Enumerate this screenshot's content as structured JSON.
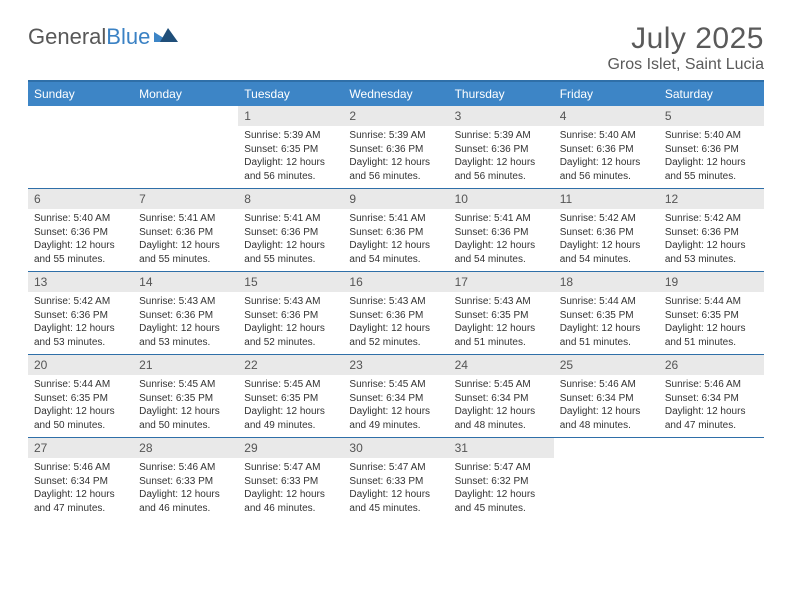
{
  "brand": {
    "part1": "General",
    "part2": "Blue"
  },
  "title": "July 2025",
  "location": "Gros Islet, Saint Lucia",
  "colors": {
    "header_bg": "#3d85c6",
    "border": "#2f6fa8",
    "daynum_bg": "#e9e9e9",
    "text_muted": "#5a5a5a"
  },
  "dow": [
    "Sunday",
    "Monday",
    "Tuesday",
    "Wednesday",
    "Thursday",
    "Friday",
    "Saturday"
  ],
  "weeks": [
    [
      {
        "n": "",
        "sr": "",
        "ss": "",
        "dl1": "",
        "dl2": "",
        "empty": true
      },
      {
        "n": "",
        "sr": "",
        "ss": "",
        "dl1": "",
        "dl2": "",
        "empty": true
      },
      {
        "n": "1",
        "sr": "Sunrise: 5:39 AM",
        "ss": "Sunset: 6:35 PM",
        "dl1": "Daylight: 12 hours",
        "dl2": "and 56 minutes."
      },
      {
        "n": "2",
        "sr": "Sunrise: 5:39 AM",
        "ss": "Sunset: 6:36 PM",
        "dl1": "Daylight: 12 hours",
        "dl2": "and 56 minutes."
      },
      {
        "n": "3",
        "sr": "Sunrise: 5:39 AM",
        "ss": "Sunset: 6:36 PM",
        "dl1": "Daylight: 12 hours",
        "dl2": "and 56 minutes."
      },
      {
        "n": "4",
        "sr": "Sunrise: 5:40 AM",
        "ss": "Sunset: 6:36 PM",
        "dl1": "Daylight: 12 hours",
        "dl2": "and 56 minutes."
      },
      {
        "n": "5",
        "sr": "Sunrise: 5:40 AM",
        "ss": "Sunset: 6:36 PM",
        "dl1": "Daylight: 12 hours",
        "dl2": "and 55 minutes."
      }
    ],
    [
      {
        "n": "6",
        "sr": "Sunrise: 5:40 AM",
        "ss": "Sunset: 6:36 PM",
        "dl1": "Daylight: 12 hours",
        "dl2": "and 55 minutes."
      },
      {
        "n": "7",
        "sr": "Sunrise: 5:41 AM",
        "ss": "Sunset: 6:36 PM",
        "dl1": "Daylight: 12 hours",
        "dl2": "and 55 minutes."
      },
      {
        "n": "8",
        "sr": "Sunrise: 5:41 AM",
        "ss": "Sunset: 6:36 PM",
        "dl1": "Daylight: 12 hours",
        "dl2": "and 55 minutes."
      },
      {
        "n": "9",
        "sr": "Sunrise: 5:41 AM",
        "ss": "Sunset: 6:36 PM",
        "dl1": "Daylight: 12 hours",
        "dl2": "and 54 minutes."
      },
      {
        "n": "10",
        "sr": "Sunrise: 5:41 AM",
        "ss": "Sunset: 6:36 PM",
        "dl1": "Daylight: 12 hours",
        "dl2": "and 54 minutes."
      },
      {
        "n": "11",
        "sr": "Sunrise: 5:42 AM",
        "ss": "Sunset: 6:36 PM",
        "dl1": "Daylight: 12 hours",
        "dl2": "and 54 minutes."
      },
      {
        "n": "12",
        "sr": "Sunrise: 5:42 AM",
        "ss": "Sunset: 6:36 PM",
        "dl1": "Daylight: 12 hours",
        "dl2": "and 53 minutes."
      }
    ],
    [
      {
        "n": "13",
        "sr": "Sunrise: 5:42 AM",
        "ss": "Sunset: 6:36 PM",
        "dl1": "Daylight: 12 hours",
        "dl2": "and 53 minutes."
      },
      {
        "n": "14",
        "sr": "Sunrise: 5:43 AM",
        "ss": "Sunset: 6:36 PM",
        "dl1": "Daylight: 12 hours",
        "dl2": "and 53 minutes."
      },
      {
        "n": "15",
        "sr": "Sunrise: 5:43 AM",
        "ss": "Sunset: 6:36 PM",
        "dl1": "Daylight: 12 hours",
        "dl2": "and 52 minutes."
      },
      {
        "n": "16",
        "sr": "Sunrise: 5:43 AM",
        "ss": "Sunset: 6:36 PM",
        "dl1": "Daylight: 12 hours",
        "dl2": "and 52 minutes."
      },
      {
        "n": "17",
        "sr": "Sunrise: 5:43 AM",
        "ss": "Sunset: 6:35 PM",
        "dl1": "Daylight: 12 hours",
        "dl2": "and 51 minutes."
      },
      {
        "n": "18",
        "sr": "Sunrise: 5:44 AM",
        "ss": "Sunset: 6:35 PM",
        "dl1": "Daylight: 12 hours",
        "dl2": "and 51 minutes."
      },
      {
        "n": "19",
        "sr": "Sunrise: 5:44 AM",
        "ss": "Sunset: 6:35 PM",
        "dl1": "Daylight: 12 hours",
        "dl2": "and 51 minutes."
      }
    ],
    [
      {
        "n": "20",
        "sr": "Sunrise: 5:44 AM",
        "ss": "Sunset: 6:35 PM",
        "dl1": "Daylight: 12 hours",
        "dl2": "and 50 minutes."
      },
      {
        "n": "21",
        "sr": "Sunrise: 5:45 AM",
        "ss": "Sunset: 6:35 PM",
        "dl1": "Daylight: 12 hours",
        "dl2": "and 50 minutes."
      },
      {
        "n": "22",
        "sr": "Sunrise: 5:45 AM",
        "ss": "Sunset: 6:35 PM",
        "dl1": "Daylight: 12 hours",
        "dl2": "and 49 minutes."
      },
      {
        "n": "23",
        "sr": "Sunrise: 5:45 AM",
        "ss": "Sunset: 6:34 PM",
        "dl1": "Daylight: 12 hours",
        "dl2": "and 49 minutes."
      },
      {
        "n": "24",
        "sr": "Sunrise: 5:45 AM",
        "ss": "Sunset: 6:34 PM",
        "dl1": "Daylight: 12 hours",
        "dl2": "and 48 minutes."
      },
      {
        "n": "25",
        "sr": "Sunrise: 5:46 AM",
        "ss": "Sunset: 6:34 PM",
        "dl1": "Daylight: 12 hours",
        "dl2": "and 48 minutes."
      },
      {
        "n": "26",
        "sr": "Sunrise: 5:46 AM",
        "ss": "Sunset: 6:34 PM",
        "dl1": "Daylight: 12 hours",
        "dl2": "and 47 minutes."
      }
    ],
    [
      {
        "n": "27",
        "sr": "Sunrise: 5:46 AM",
        "ss": "Sunset: 6:34 PM",
        "dl1": "Daylight: 12 hours",
        "dl2": "and 47 minutes."
      },
      {
        "n": "28",
        "sr": "Sunrise: 5:46 AM",
        "ss": "Sunset: 6:33 PM",
        "dl1": "Daylight: 12 hours",
        "dl2": "and 46 minutes."
      },
      {
        "n": "29",
        "sr": "Sunrise: 5:47 AM",
        "ss": "Sunset: 6:33 PM",
        "dl1": "Daylight: 12 hours",
        "dl2": "and 46 minutes."
      },
      {
        "n": "30",
        "sr": "Sunrise: 5:47 AM",
        "ss": "Sunset: 6:33 PM",
        "dl1": "Daylight: 12 hours",
        "dl2": "and 45 minutes."
      },
      {
        "n": "31",
        "sr": "Sunrise: 5:47 AM",
        "ss": "Sunset: 6:32 PM",
        "dl1": "Daylight: 12 hours",
        "dl2": "and 45 minutes."
      },
      {
        "n": "",
        "sr": "",
        "ss": "",
        "dl1": "",
        "dl2": "",
        "empty": true
      },
      {
        "n": "",
        "sr": "",
        "ss": "",
        "dl1": "",
        "dl2": "",
        "empty": true
      }
    ]
  ]
}
